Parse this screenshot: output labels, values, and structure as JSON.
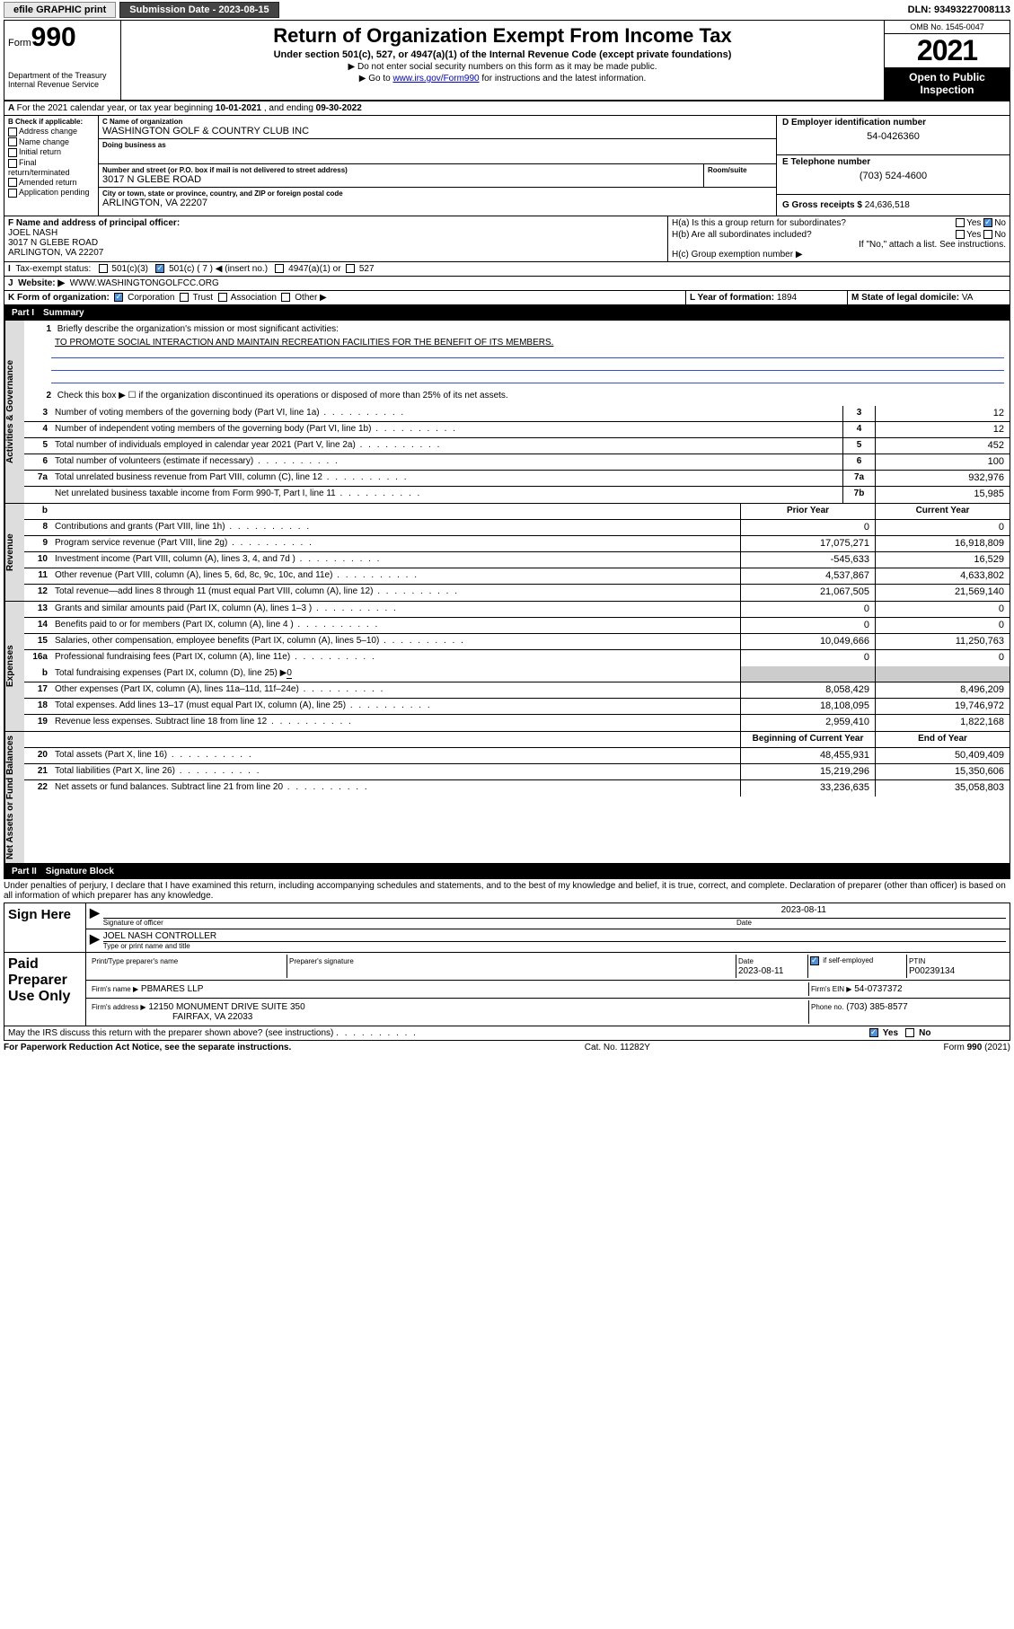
{
  "topbar": {
    "efile": "efile GRAPHIC print",
    "submission_label": "Submission Date - 2023-08-15",
    "dln": "DLN: 93493227008113"
  },
  "header": {
    "form_label": "Form",
    "form_number": "990",
    "dept": "Department of the Treasury",
    "irs": "Internal Revenue Service",
    "title": "Return of Organization Exempt From Income Tax",
    "subtitle": "Under section 501(c), 527, or 4947(a)(1) of the Internal Revenue Code (except private foundations)",
    "note1": "▶ Do not enter social security numbers on this form as it may be made public.",
    "note2_pre": "▶ Go to ",
    "note2_link": "www.irs.gov/Form990",
    "note2_post": " for instructions and the latest information.",
    "omb": "OMB No. 1545-0047",
    "year": "2021",
    "inspect1": "Open to Public",
    "inspect2": "Inspection"
  },
  "periodA": {
    "text_pre": "For the 2021 calendar year, or tax year beginning ",
    "begin": "10-01-2021",
    "mid": " , and ending ",
    "end": "09-30-2022"
  },
  "secB": {
    "label": "B Check if applicable:",
    "opts": [
      "Address change",
      "Name change",
      "Initial return",
      "Final return/terminated",
      "Amended return",
      "Application pending"
    ]
  },
  "secC": {
    "name_lbl": "C Name of organization",
    "name": "WASHINGTON GOLF & COUNTRY CLUB INC",
    "dba_lbl": "Doing business as",
    "dba": "",
    "addr_lbl": "Number and street (or P.O. box if mail is not delivered to street address)",
    "room_lbl": "Room/suite",
    "addr": "3017 N GLEBE ROAD",
    "city_lbl": "City or town, state or province, country, and ZIP or foreign postal code",
    "city": "ARLINGTON, VA  22207"
  },
  "secD": {
    "lbl": "D Employer identification number",
    "val": "54-0426360"
  },
  "secE": {
    "lbl": "E Telephone number",
    "val": "(703) 524-4600"
  },
  "secG": {
    "lbl": "G Gross receipts $",
    "val": "24,636,518"
  },
  "secF": {
    "lbl": "F Name and address of principal officer:",
    "name": "JOEL NASH",
    "addr1": "3017 N GLEBE ROAD",
    "addr2": "ARLINGTON, VA  22207"
  },
  "secH": {
    "ha": "H(a)  Is this a group return for subordinates?",
    "hb": "H(b)  Are all subordinates included?",
    "hb_note": "If \"No,\" attach a list. See instructions.",
    "hc": "H(c)  Group exemption number ▶",
    "yes": "Yes",
    "no": "No"
  },
  "secI": {
    "lbl": "Tax-exempt status:",
    "o1": "501(c)(3)",
    "o2": "501(c) ( 7 ) ◀ (insert no.)",
    "o3": "4947(a)(1) or",
    "o4": "527"
  },
  "secJ": {
    "lbl": "Website: ▶",
    "val": "WWW.WASHINGTONGOLFCC.ORG"
  },
  "secK": {
    "lbl": "K Form of organization:",
    "o1": "Corporation",
    "o2": "Trust",
    "o3": "Association",
    "o4": "Other ▶"
  },
  "secL": {
    "lbl": "L Year of formation:",
    "val": "1894"
  },
  "secM": {
    "lbl": "M State of legal domicile:",
    "val": "VA"
  },
  "part1": {
    "pt": "Part I",
    "tt": "Summary"
  },
  "vtabs": {
    "gov": "Activities & Governance",
    "rev": "Revenue",
    "exp": "Expenses",
    "net": "Net Assets or Fund Balances"
  },
  "mission": {
    "lbl": "Briefly describe the organization's mission or most significant activities:",
    "txt": "TO PROMOTE SOCIAL INTERACTION AND MAINTAIN RECREATION FACILITIES FOR THE BENEFIT OF ITS MEMBERS."
  },
  "line2": "Check this box ▶ ☐  if the organization discontinued its operations or disposed of more than 25% of its net assets.",
  "lines_gov": [
    {
      "n": "3",
      "t": "Number of voting members of the governing body (Part VI, line 1a)",
      "b": "3",
      "v": "12"
    },
    {
      "n": "4",
      "t": "Number of independent voting members of the governing body (Part VI, line 1b)",
      "b": "4",
      "v": "12"
    },
    {
      "n": "5",
      "t": "Total number of individuals employed in calendar year 2021 (Part V, line 2a)",
      "b": "5",
      "v": "452"
    },
    {
      "n": "6",
      "t": "Total number of volunteers (estimate if necessary)",
      "b": "6",
      "v": "100"
    },
    {
      "n": "7a",
      "t": "Total unrelated business revenue from Part VIII, column (C), line 12",
      "b": "7a",
      "v": "932,976"
    },
    {
      "n": "",
      "t": "Net unrelated business taxable income from Form 990-T, Part I, line 11",
      "b": "7b",
      "v": "15,985"
    }
  ],
  "colhdr": {
    "b": "b",
    "py": "Prior Year",
    "cy": "Current Year"
  },
  "lines_rev": [
    {
      "n": "8",
      "t": "Contributions and grants (Part VIII, line 1h)",
      "py": "0",
      "cy": "0"
    },
    {
      "n": "9",
      "t": "Program service revenue (Part VIII, line 2g)",
      "py": "17,075,271",
      "cy": "16,918,809"
    },
    {
      "n": "10",
      "t": "Investment income (Part VIII, column (A), lines 3, 4, and 7d )",
      "py": "-545,633",
      "cy": "16,529"
    },
    {
      "n": "11",
      "t": "Other revenue (Part VIII, column (A), lines 5, 6d, 8c, 9c, 10c, and 11e)",
      "py": "4,537,867",
      "cy": "4,633,802"
    },
    {
      "n": "12",
      "t": "Total revenue—add lines 8 through 11 (must equal Part VIII, column (A), line 12)",
      "py": "21,067,505",
      "cy": "21,569,140"
    }
  ],
  "lines_exp": [
    {
      "n": "13",
      "t": "Grants and similar amounts paid (Part IX, column (A), lines 1–3 )",
      "py": "0",
      "cy": "0"
    },
    {
      "n": "14",
      "t": "Benefits paid to or for members (Part IX, column (A), line 4 )",
      "py": "0",
      "cy": "0"
    },
    {
      "n": "15",
      "t": "Salaries, other compensation, employee benefits (Part IX, column (A), lines 5–10)",
      "py": "10,049,666",
      "cy": "11,250,763"
    },
    {
      "n": "16a",
      "t": "Professional fundraising fees (Part IX, column (A), line 11e)",
      "py": "0",
      "cy": "0"
    }
  ],
  "line16b": {
    "n": "b",
    "t": "Total fundraising expenses (Part IX, column (D), line 25) ▶",
    "v": "0"
  },
  "lines_exp2": [
    {
      "n": "17",
      "t": "Other expenses (Part IX, column (A), lines 11a–11d, 11f–24e)",
      "py": "8,058,429",
      "cy": "8,496,209"
    },
    {
      "n": "18",
      "t": "Total expenses. Add lines 13–17 (must equal Part IX, column (A), line 25)",
      "py": "18,108,095",
      "cy": "19,746,972"
    },
    {
      "n": "19",
      "t": "Revenue less expenses. Subtract line 18 from line 12",
      "py": "2,959,410",
      "cy": "1,822,168"
    }
  ],
  "colhdr2": {
    "py": "Beginning of Current Year",
    "cy": "End of Year"
  },
  "lines_net": [
    {
      "n": "20",
      "t": "Total assets (Part X, line 16)",
      "py": "48,455,931",
      "cy": "50,409,409"
    },
    {
      "n": "21",
      "t": "Total liabilities (Part X, line 26)",
      "py": "15,219,296",
      "cy": "15,350,606"
    },
    {
      "n": "22",
      "t": "Net assets or fund balances. Subtract line 21 from line 20",
      "py": "33,236,635",
      "cy": "35,058,803"
    }
  ],
  "part2": {
    "pt": "Part II",
    "tt": "Signature Block"
  },
  "penalty": "Under penalties of perjury, I declare that I have examined this return, including accompanying schedules and statements, and to the best of my knowledge and belief, it is true, correct, and complete. Declaration of preparer (other than officer) is based on all information of which preparer has any knowledge.",
  "sign": {
    "here": "Sign Here",
    "sig_lbl": "Signature of officer",
    "date_lbl": "Date",
    "date": "2023-08-11",
    "name": "JOEL NASH  CONTROLLER",
    "name_lbl": "Type or print name and title"
  },
  "paid": {
    "lbl": "Paid Preparer Use Only",
    "h1": "Print/Type preparer's name",
    "h2": "Preparer's signature",
    "h3": "Date",
    "h3v": "2023-08-11",
    "h4": "Check ☑ if self-employed",
    "h5": "PTIN",
    "h5v": "P00239134",
    "firm_lbl": "Firm's name    ▶",
    "firm": "PBMARES LLP",
    "ein_lbl": "Firm's EIN ▶",
    "ein": "54-0737372",
    "addr_lbl": "Firm's address ▶",
    "addr1": "12150 MONUMENT DRIVE SUITE 350",
    "addr2": "FAIRFAX, VA  22033",
    "phone_lbl": "Phone no.",
    "phone": "(703) 385-8577"
  },
  "discuss": {
    "q": "May the IRS discuss this return with the preparer shown above? (see instructions)",
    "yes": "Yes",
    "no": "No"
  },
  "footer": {
    "l": "For Paperwork Reduction Act Notice, see the separate instructions.",
    "c": "Cat. No. 11282Y",
    "r": "Form 990 (2021)"
  }
}
